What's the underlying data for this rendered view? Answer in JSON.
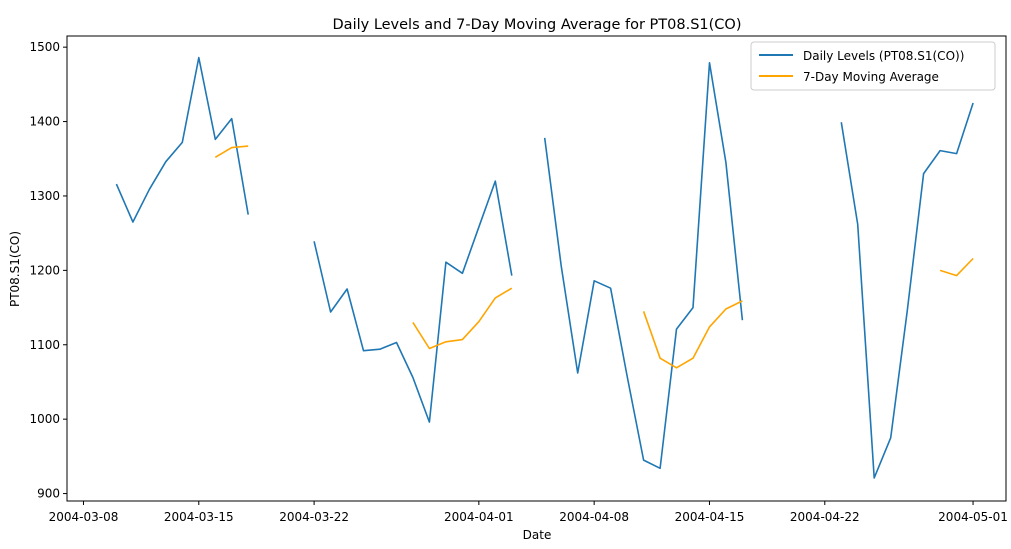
{
  "chart_data": {
    "type": "line",
    "title": "Daily Levels and 7-Day Moving Average for PT08.S1(CO)",
    "xlabel": "Date",
    "ylabel": "PT08.S1(CO)",
    "x_ticks": [
      "2004-03-08",
      "2004-03-15",
      "2004-03-22",
      "2004-04-01",
      "2004-04-08",
      "2004-04-15",
      "2004-04-22",
      "2004-05-01"
    ],
    "y_ticks": [
      900,
      1000,
      1100,
      1200,
      1300,
      1400,
      1500
    ],
    "xlim": [
      "2004-03-07",
      "2004-05-03"
    ],
    "ylim": [
      890,
      1515
    ],
    "legend_position": "top-right",
    "grid": false,
    "series": [
      {
        "name": "Daily Levels (PT08.S1(CO))",
        "color": "#1f77b4",
        "points": [
          [
            "2004-03-10",
            1316
          ],
          [
            "2004-03-11",
            1265
          ],
          [
            "2004-03-12",
            1309
          ],
          [
            "2004-03-13",
            1346
          ],
          [
            "2004-03-14",
            1372
          ],
          [
            "2004-03-15",
            1486
          ],
          [
            "2004-03-16",
            1376
          ],
          [
            "2004-03-17",
            1404
          ],
          [
            "2004-03-18",
            1275
          ],
          [
            "2004-03-19",
            null
          ],
          [
            "2004-03-20",
            null
          ],
          [
            "2004-03-21",
            null
          ],
          [
            "2004-03-22",
            1239
          ],
          [
            "2004-03-23",
            1144
          ],
          [
            "2004-03-24",
            1175
          ],
          [
            "2004-03-25",
            1092
          ],
          [
            "2004-03-26",
            1094
          ],
          [
            "2004-03-27",
            1103
          ],
          [
            "2004-03-28",
            1056
          ],
          [
            "2004-03-29",
            996
          ],
          [
            "2004-03-30",
            1211
          ],
          [
            "2004-03-31",
            1196
          ],
          [
            "2004-04-01",
            1258
          ],
          [
            "2004-04-02",
            1320
          ],
          [
            "2004-04-03",
            1193
          ],
          [
            "2004-04-04",
            null
          ],
          [
            "2004-04-05",
            1378
          ],
          [
            "2004-04-06",
            1206
          ],
          [
            "2004-04-07",
            1062
          ],
          [
            "2004-04-08",
            1186
          ],
          [
            "2004-04-09",
            1176
          ],
          [
            "2004-04-10",
            1058
          ],
          [
            "2004-04-11",
            945
          ],
          [
            "2004-04-12",
            934
          ],
          [
            "2004-04-13",
            1121
          ],
          [
            "2004-04-14",
            1150
          ],
          [
            "2004-04-15",
            1479
          ],
          [
            "2004-04-16",
            1345
          ],
          [
            "2004-04-17",
            1133
          ],
          [
            "2004-04-18",
            null
          ],
          [
            "2004-04-19",
            null
          ],
          [
            "2004-04-20",
            null
          ],
          [
            "2004-04-21",
            null
          ],
          [
            "2004-04-22",
            null
          ],
          [
            "2004-04-23",
            1399
          ],
          [
            "2004-04-24",
            1262
          ],
          [
            "2004-04-25",
            921
          ],
          [
            "2004-04-26",
            975
          ],
          [
            "2004-04-27",
            1145
          ],
          [
            "2004-04-28",
            1330
          ],
          [
            "2004-04-29",
            1361
          ],
          [
            "2004-04-30",
            1357
          ],
          [
            "2004-05-01",
            1425
          ]
        ]
      },
      {
        "name": "7-Day Moving Average",
        "color": "#ffa500",
        "points": [
          [
            "2004-03-16",
            1352
          ],
          [
            "2004-03-17",
            1365
          ],
          [
            "2004-03-18",
            1367
          ],
          [
            "2004-03-19",
            null
          ],
          [
            "2004-03-28",
            1130
          ],
          [
            "2004-03-29",
            1095
          ],
          [
            "2004-03-30",
            1104
          ],
          [
            "2004-03-31",
            1107
          ],
          [
            "2004-04-01",
            1131
          ],
          [
            "2004-04-02",
            1163
          ],
          [
            "2004-04-03",
            1176
          ],
          [
            "2004-04-04",
            null
          ],
          [
            "2004-04-11",
            1145
          ],
          [
            "2004-04-12",
            1082
          ],
          [
            "2004-04-13",
            1069
          ],
          [
            "2004-04-14",
            1082
          ],
          [
            "2004-04-15",
            1124
          ],
          [
            "2004-04-16",
            1148
          ],
          [
            "2004-04-17",
            1159
          ],
          [
            "2004-04-18",
            null
          ],
          [
            "2004-04-29",
            1200
          ],
          [
            "2004-04-30",
            1193
          ],
          [
            "2004-05-01",
            1216
          ]
        ]
      }
    ]
  }
}
